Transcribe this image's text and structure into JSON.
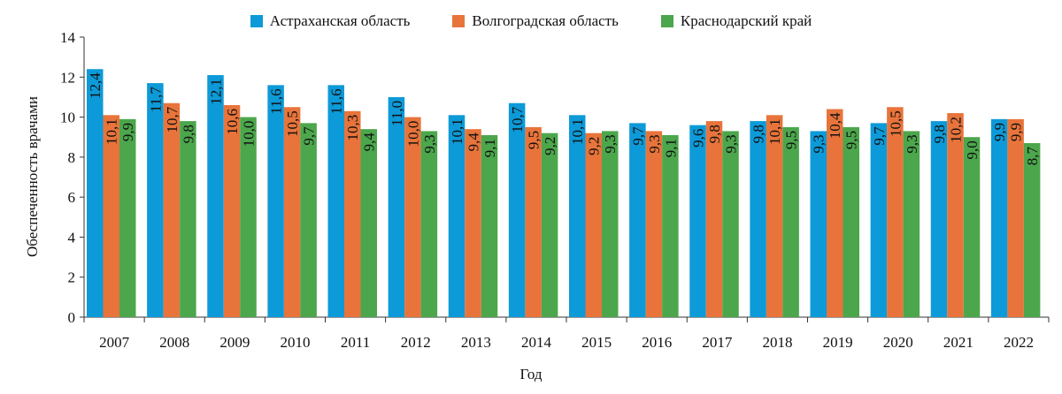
{
  "chart_data": {
    "type": "bar",
    "title": "",
    "xlabel": "Год",
    "ylabel": "Обеспеченность врачами",
    "ylim": [
      0,
      14
    ],
    "yticks": [
      0,
      2,
      4,
      6,
      8,
      10,
      12,
      14
    ],
    "grid": false,
    "legend_position": "top",
    "categories": [
      "2007",
      "2008",
      "2009",
      "2010",
      "2011",
      "2012",
      "2013",
      "2014",
      "2015",
      "2016",
      "2017",
      "2018",
      "2019",
      "2020",
      "2021",
      "2022"
    ],
    "series": [
      {
        "name": "Астраханская область",
        "color": "#0d9ad8",
        "values": [
          12.4,
          11.7,
          12.1,
          11.6,
          11.6,
          11.0,
          10.1,
          10.7,
          10.1,
          9.7,
          9.6,
          9.8,
          9.3,
          9.7,
          9.8,
          9.9
        ],
        "labels": [
          "12,4",
          "11,7",
          "12,1",
          "11,6",
          "11,6",
          "11,0",
          "10,1",
          "10,7",
          "10,1",
          "9,7",
          "9,6",
          "9,8",
          "9,3",
          "9,7",
          "9,8",
          "9,9"
        ]
      },
      {
        "name": "Волгоградская область",
        "color": "#e8743b",
        "values": [
          10.1,
          10.7,
          10.6,
          10.5,
          10.3,
          10.0,
          9.4,
          9.5,
          9.2,
          9.3,
          9.8,
          10.1,
          10.4,
          10.5,
          10.2,
          9.9
        ],
        "labels": [
          "10,1",
          "10,7",
          "10,6",
          "10,5",
          "10,3",
          "10,0",
          "9,4",
          "9,5",
          "9,2",
          "9,3",
          "9,8",
          "10,1",
          "10,4",
          "10,5",
          "10,2",
          "9,9"
        ]
      },
      {
        "name": "Краснодарский край",
        "color": "#4ca64c",
        "values": [
          9.9,
          9.8,
          10.0,
          9.7,
          9.4,
          9.3,
          9.1,
          9.2,
          9.3,
          9.1,
          9.3,
          9.5,
          9.5,
          9.3,
          9.0,
          8.7
        ],
        "labels": [
          "9,9",
          "9,8",
          "10,0",
          "9,7",
          "9,4",
          "9,3",
          "9,1",
          "9,2",
          "9,3",
          "9,1",
          "9,3",
          "9,5",
          "9,5",
          "9,3",
          "9,0",
          "8,7"
        ]
      }
    ]
  }
}
